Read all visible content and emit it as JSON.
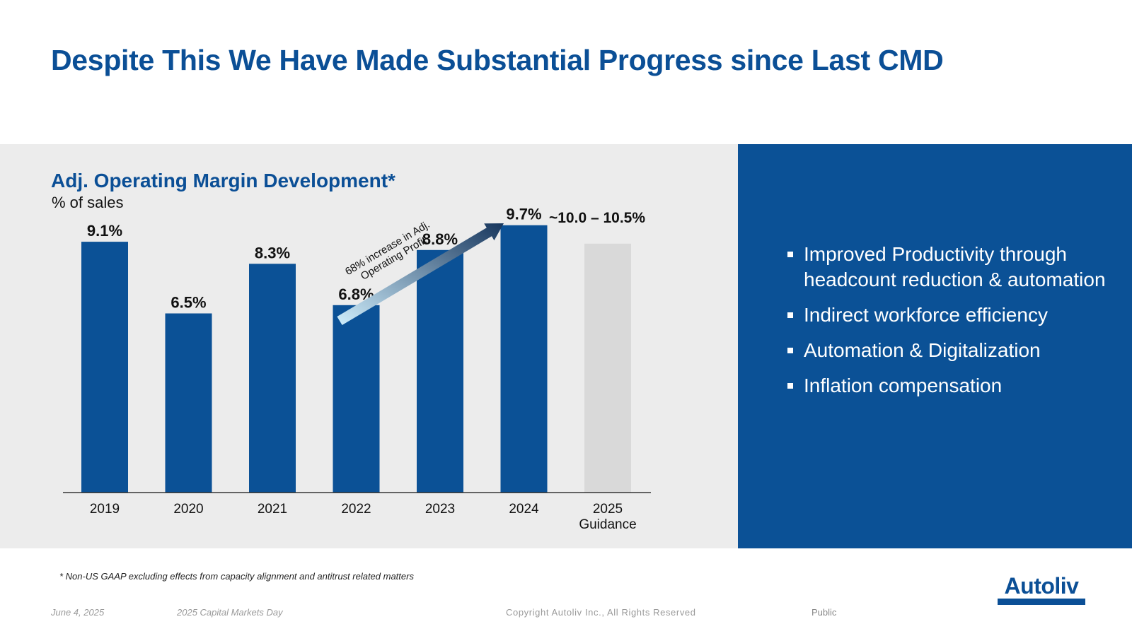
{
  "slide": {
    "title": "Despite This We Have Made Substantial Progress since Last CMD"
  },
  "chart": {
    "title": "Adj. Operating Margin Development*",
    "subtitle": "% of sales"
  },
  "chart_data": {
    "type": "bar",
    "title": "Adj. Operating Margin Development*",
    "ylabel": "% of sales",
    "xlabel": "",
    "ylim": [
      0,
      11
    ],
    "categories": [
      "2019",
      "2020",
      "2021",
      "2022",
      "2023",
      "2024",
      "2025 Guidance"
    ],
    "values": [
      9.1,
      6.5,
      8.3,
      6.8,
      8.8,
      9.7,
      10.25
    ],
    "value_labels": [
      "9.1%",
      "6.5%",
      "8.3%",
      "6.8%",
      "8.8%",
      "9.7%",
      "~10.0 – 10.5%"
    ],
    "guidance_range": [
      10.0,
      10.5
    ],
    "colors": {
      "actual": "#0b5196",
      "guidance": "#d9d9d9",
      "arrow_start": "#cfeefc",
      "arrow_end": "#17365d"
    },
    "annotation": "68% increase in Adj. Operating Profit",
    "grid": false,
    "legend": "none"
  },
  "highlights": {
    "items": [
      "Improved Productivity through headcount reduction & automation",
      "Indirect workforce efficiency",
      "Automation & Digitalization",
      "Inflation compensation"
    ]
  },
  "footnote": "* Non-US GAAP excluding effects from capacity alignment and antitrust related matters",
  "footer": {
    "date": "June 4, 2025",
    "event": "2025 Capital Markets Day",
    "copyright": "Copyright Autoliv Inc., All Rights Reserved",
    "classification": "Public"
  },
  "logo": {
    "text": "Autoliv"
  }
}
